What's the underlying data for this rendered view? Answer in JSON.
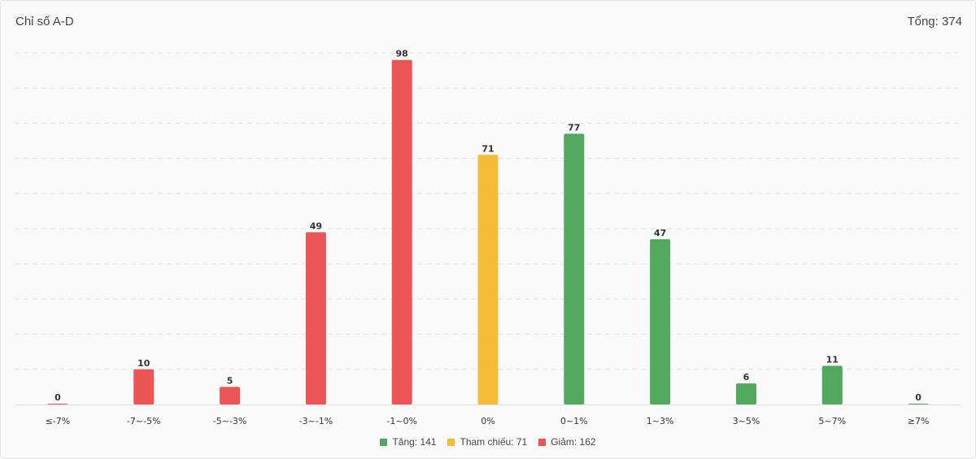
{
  "header": {
    "title": "Chỉ số A-D",
    "total_label": "Tổng: 374"
  },
  "colors": {
    "up": "#52a95e",
    "ref": "#f4bc36",
    "down": "#eb5556",
    "grid": "#e0e0e0",
    "axis_text": "#333333"
  },
  "chart_data": {
    "type": "bar",
    "title": "Chỉ số A-D",
    "categories": [
      "≤-7%",
      "-7~-5%",
      "-5~-3%",
      "-3~-1%",
      "-1~0%",
      "0%",
      "0~1%",
      "1~3%",
      "3~5%",
      "5~7%",
      "≥7%"
    ],
    "values": [
      0,
      10,
      5,
      49,
      98,
      71,
      77,
      47,
      6,
      11,
      0
    ],
    "bar_groups": [
      "down",
      "down",
      "down",
      "down",
      "down",
      "ref",
      "up",
      "up",
      "up",
      "up",
      "up"
    ],
    "ylim": [
      0,
      100
    ],
    "grid": true,
    "legend_position": "bottom-center",
    "legend": [
      {
        "key": "up",
        "label": "Tăng: 141"
      },
      {
        "key": "ref",
        "label": "Tham chiếu: 71"
      },
      {
        "key": "down",
        "label": "Giảm: 162"
      }
    ]
  }
}
